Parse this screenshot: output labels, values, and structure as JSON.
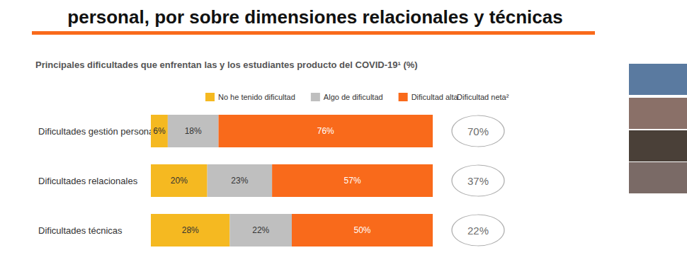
{
  "chart_data": {
    "type": "bar",
    "title": "personal, por sobre dimensiones relacionales y técnicas",
    "subtitle": "Principales dificultades que enfrentan las y los estudiantes producto del COVID-19¹ (%)",
    "orientation": "horizontal",
    "stacked": true,
    "data_labels": true,
    "tick_labels": "y",
    "grid": false,
    "legend": "top",
    "categories": [
      "Dificultades gestión personal",
      "Dificultades relacionales",
      "Dificultades técnicas"
    ],
    "xlim": [
      0,
      100
    ],
    "series": [
      {
        "name": "No he tenido dificultad",
        "color": "#f5b921",
        "values": [
          6,
          20,
          28
        ],
        "value_labels": [
          "6%",
          "20%",
          "28%"
        ]
      },
      {
        "name": "Algo de dificultad",
        "color": "#bfbfbf",
        "values": [
          18,
          23,
          22
        ],
        "value_labels": [
          "18%",
          "23%",
          "22%"
        ]
      },
      {
        "name": "Dificultad alta",
        "color": "#f96a1b",
        "values": [
          76,
          57,
          50
        ],
        "value_labels": [
          "76%",
          "57%",
          "50%"
        ]
      }
    ],
    "net_difficulty": {
      "title": "Dificultad neta²",
      "values": [
        70,
        37,
        22
      ],
      "value_labels": [
        "70%",
        "37%",
        "22%"
      ]
    }
  }
}
